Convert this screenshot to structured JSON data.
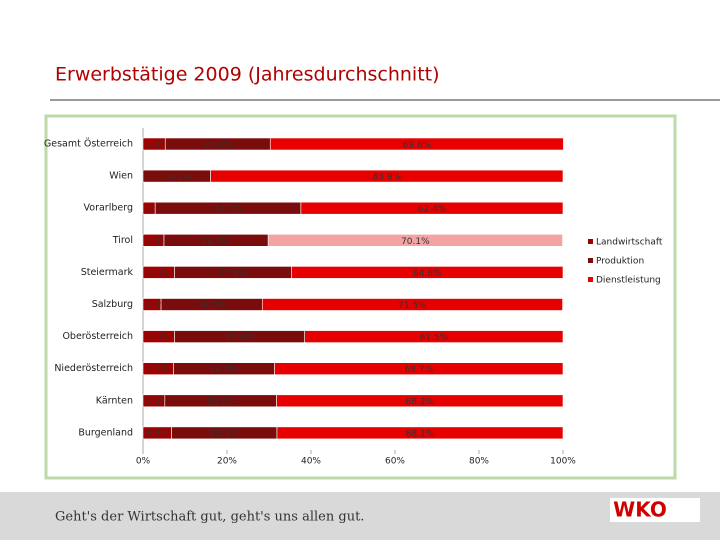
{
  "chart_data": {
    "type": "stacked_barh",
    "title": "Erwerbstätige 2009 (Jahresdurchschnitt)",
    "footer": "Geht's der Wirtschaft gut, geht's uns allen gut.",
    "logo": "WKO",
    "categories": [
      "Gesamt Österreich",
      "Wien",
      "Vorarlberg",
      "Tirol",
      "Steiermark",
      "Salzburg",
      "Oberösterreich",
      "Niederösterreich",
      "Kärnten",
      "Burgenland"
    ],
    "series": [
      {
        "name": "Landwirtschaft",
        "color": "#a00000",
        "values": [
          5.3,
          0.0,
          2.9,
          5.0,
          7.5,
          4.3,
          7.5,
          7.3,
          5.2,
          6.8
        ],
        "value_labels": [
          "5.3%",
          "0.0%",
          "2.9%",
          "5.0%",
          "7.5%",
          "4.3%",
          "7.5%",
          "7.3%",
          "5.2%",
          "6.8%"
        ]
      },
      {
        "name": "Produktion",
        "color": "#7a0c0c",
        "values": [
          25.0,
          16.1,
          34.7,
          24.8,
          27.9,
          24.1,
          31.0,
          24.0,
          26.6,
          25.1
        ],
        "value_labels": [
          "25.0%",
          "16.1%",
          "34.7%",
          "24.8%",
          "27.9%",
          "24.1%",
          "31.0%",
          "24.0%",
          "26.6%",
          "25.1%"
        ]
      },
      {
        "name": "Dienstleistung",
        "color": "#e60000",
        "colors": [
          "#e60000",
          "#e60000",
          "#e60000",
          "#f4a3a3",
          "#e60000",
          "#e60000",
          "#e60000",
          "#e60000",
          "#e60000",
          "#e60000"
        ],
        "values": [
          69.8,
          83.9,
          62.4,
          70.1,
          64.6,
          71.5,
          61.5,
          68.7,
          68.2,
          68.1
        ],
        "value_labels": [
          "69.8%",
          "83.9%",
          "62.4%",
          "70.1%",
          "64.6%",
          "71.5%",
          "61.5%",
          "68.7%",
          "68.2%",
          "68.1%"
        ]
      }
    ],
    "xlim": [
      0,
      100
    ],
    "xticks": [
      {
        "value": 0,
        "label": "0%"
      },
      {
        "value": 20,
        "label": "20%"
      },
      {
        "value": 40,
        "label": "40%"
      },
      {
        "value": 60,
        "label": "60%"
      },
      {
        "value": 80,
        "label": "80%"
      },
      {
        "value": 100,
        "label": "100%"
      }
    ],
    "legend": "right"
  }
}
